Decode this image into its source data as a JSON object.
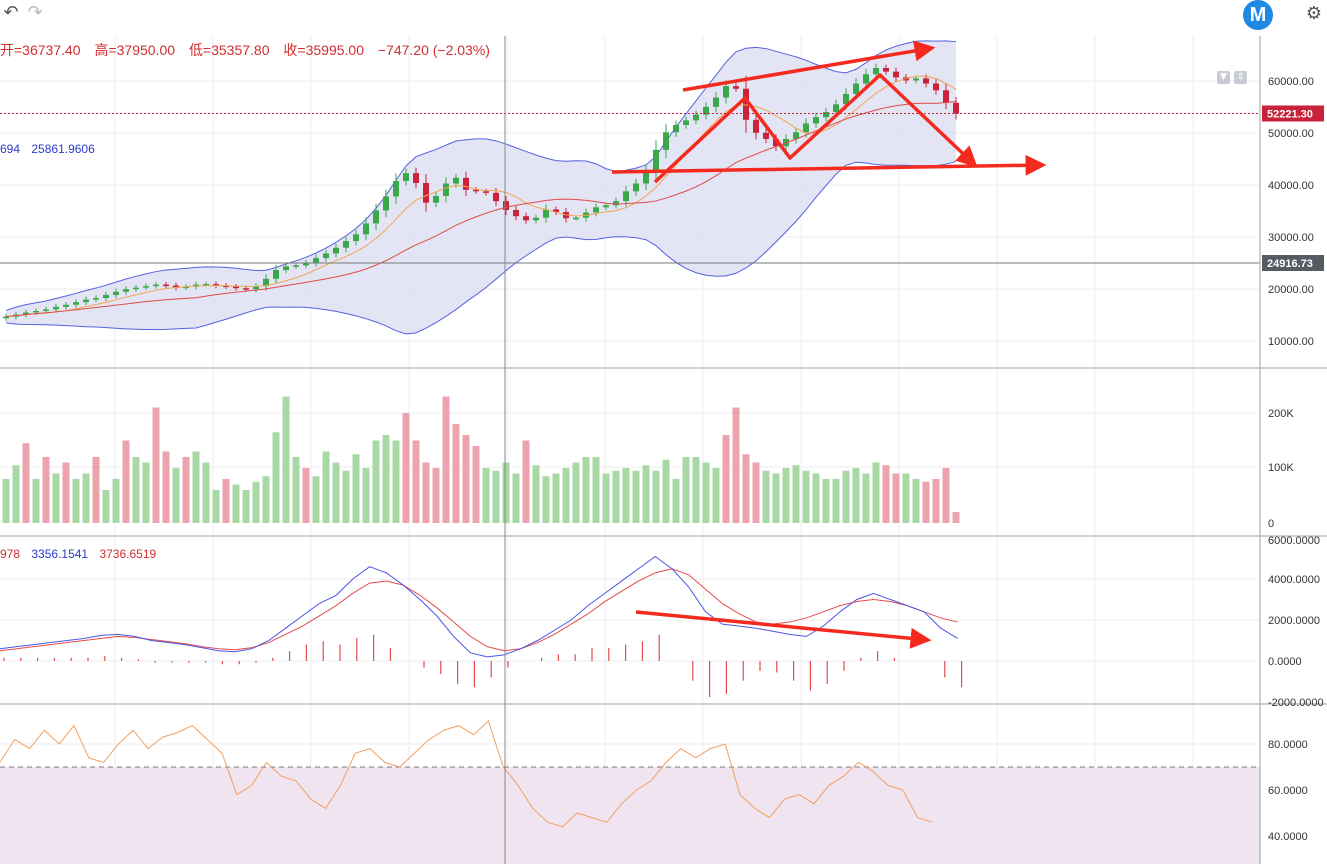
{
  "toolbar": {
    "undo_icon": "undo-icon",
    "redo_icon": "redo-icon",
    "logo_letter": "M",
    "settings_icon": "gear-icon"
  },
  "ohlc": {
    "open": "开=36737.40",
    "high": "高=37950.00",
    "low": "低=35357.80",
    "close": "收=35995.00",
    "change": "−747.20 (−2.03%)"
  },
  "boll_legend": [
    "694",
    "25861.9606"
  ],
  "macd_legend": [
    "978",
    "3356.1541",
    "3736.6519"
  ],
  "price_axis": {
    "ticks": [
      "60000.00",
      "50000.00",
      "40000.00",
      "30000.00",
      "20000.00",
      "10000.00"
    ],
    "current_price": "52221.30",
    "crosshair_price": "24916.73"
  },
  "volume_axis": {
    "ticks": [
      "200K",
      "100K",
      "0"
    ]
  },
  "macd_axis": {
    "ticks": [
      "6000.0000",
      "4000.0000",
      "2000.0000",
      "0.0000",
      "-2000.0000"
    ]
  },
  "rsi_axis": {
    "ticks": [
      "80.0000",
      "60.0000",
      "40.0000"
    ]
  },
  "colors": {
    "up": "#3aa84a",
    "down": "#c9233b",
    "boll_fill": "#d9dcf0",
    "boll_line": "#5561e0",
    "ma_orange": "#f0a650",
    "ma_red": "#e04a4a",
    "vol_up": "#a8d9a4",
    "vol_down": "#eca3ad",
    "macd_fast": "#4b57e6",
    "macd_slow": "#e44c4c",
    "rsi": "#f0a060",
    "rsi_band": "#f1e4f1",
    "annotation": "#f52a1f",
    "grid": "#eceef2"
  },
  "chart_data": {
    "type": "line",
    "price_ylim": [
      5000,
      68000
    ],
    "close_path": [
      13000,
      13400,
      13800,
      14100,
      14400,
      14900,
      15300,
      15800,
      16300,
      16600,
      17200,
      17800,
      18300,
      18600,
      18900,
      19200,
      19000,
      18600,
      18800,
      19200,
      19300,
      19000,
      18800,
      18500,
      18300,
      18900,
      20300,
      22000,
      22700,
      22900,
      23400,
      24300,
      25200,
      26300,
      27600,
      28900,
      31000,
      33500,
      36200,
      39200,
      40700,
      38800,
      35000,
      36300,
      38700,
      39800,
      37500,
      37200,
      36900,
      35300,
      33600,
      32400,
      31600,
      32100,
      33700,
      33200,
      32000,
      32100,
      33100,
      34100,
      34500,
      35300,
      37200,
      38700,
      41100,
      45200,
      48600,
      50000,
      50900,
      52000,
      53500,
      55300,
      57500,
      57000,
      51000,
      48500,
      47300,
      45900,
      47300,
      48600,
      50300,
      51500,
      52500,
      54000,
      56000,
      58000,
      59800,
      61000,
      60300,
      59200,
      58600,
      59000,
      58000,
      56700,
      54300,
      52200
    ],
    "volume_ylim": [
      0,
      270000
    ],
    "volume": [
      80000,
      105000,
      145000,
      80000,
      120000,
      90000,
      110000,
      80000,
      90000,
      120000,
      60000,
      80000,
      150000,
      120000,
      110000,
      210000,
      130000,
      100000,
      120000,
      130000,
      110000,
      60000,
      80000,
      70000,
      60000,
      75000,
      85000,
      165000,
      230000,
      120000,
      100000,
      85000,
      130000,
      110000,
      95000,
      125000,
      100000,
      150000,
      160000,
      150000,
      200000,
      150000,
      110000,
      100000,
      230000,
      180000,
      160000,
      140000,
      100000,
      95000,
      110000,
      90000,
      150000,
      105000,
      85000,
      90000,
      100000,
      110000,
      120000,
      120000,
      90000,
      95000,
      100000,
      95000,
      105000,
      95000,
      115000,
      80000,
      120000,
      120000,
      110000,
      100000,
      160000,
      210000,
      125000,
      110000,
      95000,
      90000,
      100000,
      105000,
      95000,
      90000,
      80000,
      80000,
      95000,
      100000,
      90000,
      110000,
      105000,
      90000,
      90000,
      80000,
      75000,
      80000,
      100000,
      20000
    ],
    "volume_up": [
      true,
      true,
      false,
      true,
      false,
      true,
      false,
      true,
      true,
      false,
      true,
      true,
      false,
      true,
      true,
      false,
      false,
      true,
      false,
      true,
      true,
      true,
      false,
      true,
      true,
      true,
      true,
      true,
      true,
      true,
      false,
      true,
      true,
      true,
      true,
      true,
      true,
      true,
      true,
      true,
      false,
      false,
      false,
      false,
      false,
      false,
      false,
      false,
      true,
      true,
      true,
      true,
      false,
      true,
      true,
      true,
      true,
      true,
      true,
      true,
      true,
      true,
      true,
      true,
      true,
      true,
      true,
      true,
      true,
      true,
      true,
      true,
      false,
      false,
      false,
      false,
      true,
      true,
      true,
      true,
      true,
      true,
      true,
      true,
      true,
      true,
      true,
      true,
      false,
      false,
      true,
      true,
      false,
      false,
      false,
      false
    ],
    "macd_ylim": [
      -2000,
      6000
    ],
    "macd_fast": [
      600,
      700,
      800,
      900,
      1000,
      1100,
      1250,
      1300,
      1200,
      1000,
      900,
      800,
      650,
      500,
      450,
      600,
      1000,
      1600,
      2200,
      2800,
      3200,
      4000,
      4600,
      4300,
      3700,
      3000,
      2200,
      1200,
      400,
      200,
      300,
      600,
      1000,
      1500,
      2000,
      2700,
      3300,
      3900,
      4500,
      5100,
      4500,
      3600,
      2400,
      1800,
      1700,
      1600,
      1450,
      1300,
      1200,
      1700,
      2400,
      3000,
      3300,
      3000,
      2700,
      2400,
      1600,
      1100
    ],
    "macd_slow": [
      500,
      600,
      700,
      800,
      900,
      1000,
      1100,
      1200,
      1150,
      1050,
      950,
      850,
      700,
      600,
      550,
      650,
      900,
      1300,
      1700,
      2200,
      2700,
      3300,
      3800,
      3900,
      3700,
      3200,
      2600,
      1900,
      1200,
      700,
      500,
      600,
      900,
      1300,
      1800,
      2300,
      2900,
      3400,
      3900,
      4300,
      4500,
      4200,
      3500,
      2800,
      2300,
      1900,
      1800,
      1900,
      2100,
      2400,
      2700,
      2900,
      3000,
      2900,
      2700,
      2400,
      2100,
      1900
    ],
    "rsi_ylim": [
      35,
      95
    ],
    "rsi": [
      72,
      82,
      78,
      86,
      80,
      88,
      74,
      72,
      80,
      86,
      78,
      83,
      85,
      88,
      82,
      76,
      58,
      62,
      72,
      66,
      64,
      56,
      52,
      62,
      76,
      78,
      72,
      70,
      76,
      82,
      86,
      88,
      84,
      90,
      70,
      62,
      52,
      46,
      44,
      50,
      48,
      46,
      54,
      60,
      64,
      72,
      78,
      74,
      78,
      80,
      58,
      52,
      48,
      56,
      58,
      54,
      62,
      66,
      72,
      68,
      62,
      60,
      48,
      46
    ],
    "rsi_reference_line": 70
  }
}
